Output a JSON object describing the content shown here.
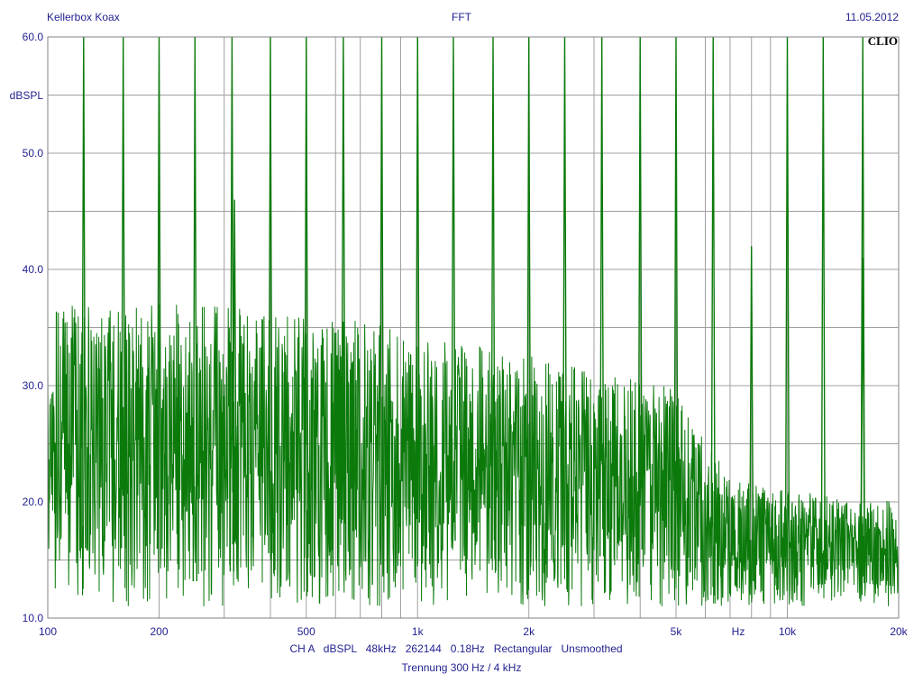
{
  "header": {
    "left": "Kellerbox Koax",
    "center": "FFT",
    "right": "11.05.2012"
  },
  "brand": "CLIO",
  "colors": {
    "trace": "#0b7a0b",
    "grid": "#a0a0a0",
    "text": "#1f1f8f",
    "frame": "#808080"
  },
  "footer": {
    "line1": "CH A   dBSPL   48kHz   262144   0.18Hz   Rectangular   Unsmoothed",
    "line2": "Trennung 300 Hz / 4 kHz"
  },
  "chart_data": {
    "type": "line",
    "title": "FFT",
    "xlabel": "Hz",
    "ylabel": "dBSPL",
    "xscale": "log",
    "xlim": [
      100,
      20000
    ],
    "ylim": [
      10,
      60
    ],
    "grid": true,
    "x_ticks": [
      {
        "value": 100,
        "label": "100"
      },
      {
        "value": 200,
        "label": "200"
      },
      {
        "value": 500,
        "label": "500"
      },
      {
        "value": 1000,
        "label": "1k"
      },
      {
        "value": 2000,
        "label": "2k"
      },
      {
        "value": 5000,
        "label": "5k"
      },
      {
        "value": 10000,
        "label": "10k"
      },
      {
        "value": 20000,
        "label": "20k"
      }
    ],
    "y_ticks": [
      {
        "value": 10,
        "label": "10.0"
      },
      {
        "value": 20,
        "label": "20.0"
      },
      {
        "value": 30,
        "label": "30.0"
      },
      {
        "value": 40,
        "label": "40.0"
      },
      {
        "value": 50,
        "label": "50.0"
      },
      {
        "value": 60,
        "label": "60.0"
      }
    ],
    "series": [
      {
        "tonal_peaks_hz": [
          125,
          160,
          200,
          250,
          315,
          400,
          500,
          630,
          800,
          1000,
          1250,
          1600,
          2000,
          2500,
          3150,
          4000,
          5000,
          6300,
          10000,
          12500,
          16000
        ],
        "tonal_peaks_db": [
          60,
          60,
          60,
          60,
          60,
          60,
          60,
          60,
          60,
          60,
          60,
          60,
          60,
          60,
          60,
          60,
          60,
          60,
          60,
          60,
          60
        ],
        "secondary_peaks_hz": [
          320,
          8000,
          16000
        ],
        "secondary_peaks_db": [
          46,
          42,
          41
        ],
        "noise_envelope": [
          {
            "x": 100,
            "y": 37
          },
          {
            "x": 150,
            "y": 37
          },
          {
            "x": 300,
            "y": 37
          },
          {
            "x": 400,
            "y": 36
          },
          {
            "x": 700,
            "y": 36
          },
          {
            "x": 1000,
            "y": 34
          },
          {
            "x": 2000,
            "y": 33
          },
          {
            "x": 3000,
            "y": 31
          },
          {
            "x": 5000,
            "y": 30
          },
          {
            "x": 7000,
            "y": 22
          },
          {
            "x": 10000,
            "y": 21
          },
          {
            "x": 20000,
            "y": 20
          }
        ]
      }
    ]
  }
}
